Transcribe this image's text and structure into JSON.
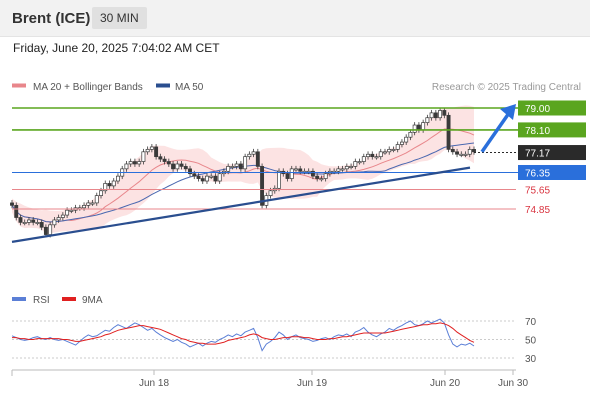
{
  "header": {
    "symbol": "Brent (ICE)",
    "timeframe": "30 MIN"
  },
  "timestamp": "Friday, June 20, 2025 7:04:02 AM CET",
  "legend": {
    "ma20": "MA 20 + Bollinger Bands",
    "ma50": "MA 50",
    "source": "Research © 2025 Trading Central"
  },
  "colors": {
    "resistance": "#5aa51f",
    "support": "#e8868b",
    "pivot": "#2a6fdb",
    "last": "#2a2a2a",
    "trend": "#2a4e8f",
    "candle": "#3a3a3a",
    "bollinger": "#fbdcdc",
    "ma20": "#e8868b",
    "ma50": "#4a68b0",
    "rsi": "#5b7fd6",
    "rsi_ma": "#e02020"
  },
  "chart_data": [
    {
      "type": "candlestick",
      "title": "",
      "xlabel": "",
      "ylabel": "",
      "x_ticks": [
        "Jun 18",
        "Jun 19",
        "Jun 20",
        "Jun 30"
      ],
      "ylim": [
        73.4,
        79.4
      ],
      "levels": [
        {
          "value": 79.0,
          "label": "79.00",
          "kind": "resistance"
        },
        {
          "value": 78.1,
          "label": "78.10",
          "kind": "resistance"
        },
        {
          "value": 77.17,
          "label": "77.17",
          "kind": "last"
        },
        {
          "value": 76.35,
          "label": "76.35",
          "kind": "pivot"
        },
        {
          "value": 75.65,
          "label": "75.65",
          "kind": "support"
        },
        {
          "value": 74.85,
          "label": "74.85",
          "kind": "support"
        }
      ],
      "trendline": {
        "from": 73.5,
        "to": 76.55
      },
      "forecast_arrow": {
        "from": 77.2,
        "to": 79.0
      },
      "closes": [
        75.0,
        74.5,
        74.3,
        74.3,
        74.4,
        74.3,
        74.3,
        74.1,
        73.8,
        74.2,
        74.4,
        74.5,
        74.6,
        74.8,
        74.8,
        74.9,
        74.9,
        75.0,
        75.1,
        75.1,
        75.4,
        75.6,
        75.9,
        75.8,
        76.0,
        76.2,
        76.5,
        76.7,
        76.8,
        76.7,
        76.8,
        77.2,
        77.3,
        77.4,
        77.0,
        76.9,
        76.8,
        76.7,
        76.5,
        76.7,
        76.6,
        76.5,
        76.3,
        76.2,
        76.1,
        76.0,
        76.2,
        76.2,
        76.0,
        76.3,
        76.4,
        76.6,
        76.6,
        76.7,
        76.5,
        77.0,
        77.1,
        77.2,
        76.6,
        75.0,
        75.4,
        75.6,
        75.7,
        76.4,
        76.3,
        76.1,
        76.5,
        76.5,
        76.4,
        76.4,
        76.4,
        76.2,
        76.1,
        76.1,
        76.3,
        76.4,
        76.4,
        76.5,
        76.5,
        76.6,
        76.6,
        76.8,
        76.8,
        77.0,
        77.1,
        77.0,
        77.0,
        77.2,
        77.2,
        77.3,
        77.3,
        77.5,
        77.6,
        77.8,
        78.0,
        78.3,
        78.1,
        78.4,
        78.6,
        78.8,
        78.6,
        78.9,
        78.7,
        77.3,
        77.2,
        77.1,
        77.1,
        77.1,
        77.3,
        77.2
      ]
    },
    {
      "type": "line",
      "title": "",
      "series": [
        {
          "name": "RSI"
        },
        {
          "name": "9MA"
        }
      ],
      "y_ticks": [
        70,
        50,
        30
      ],
      "ylim": [
        25,
        80
      ],
      "rsi": [
        54,
        52,
        50,
        49,
        50,
        52,
        53,
        51,
        50,
        52,
        50,
        49,
        50,
        48,
        46,
        44,
        48,
        52,
        55,
        53,
        54,
        57,
        60,
        59,
        63,
        66,
        64,
        62,
        65,
        68,
        66,
        63,
        60,
        62,
        58,
        55,
        52,
        50,
        48,
        50,
        47,
        45,
        42,
        44,
        46,
        43,
        46,
        48,
        47,
        50,
        52,
        55,
        53,
        56,
        54,
        58,
        60,
        62,
        52,
        38,
        45,
        48,
        52,
        58,
        55,
        50,
        53,
        55,
        52,
        51,
        50,
        48,
        49,
        51,
        52,
        50,
        53,
        55,
        54,
        56,
        53,
        58,
        60,
        63,
        58,
        55,
        53,
        56,
        58,
        62,
        60,
        63,
        65,
        68,
        70,
        66,
        65,
        67,
        70,
        68,
        70,
        72,
        68,
        55,
        45,
        42,
        45,
        44,
        46,
        43
      ],
      "ma9": [
        52,
        52,
        51,
        51,
        50,
        50,
        51,
        51,
        51,
        51,
        51,
        51,
        50,
        50,
        49,
        48,
        48,
        49,
        50,
        51,
        52,
        53,
        55,
        56,
        58,
        60,
        61,
        62,
        63,
        64,
        65,
        65,
        64,
        63,
        62,
        61,
        59,
        57,
        55,
        53,
        51,
        50,
        48,
        47,
        46,
        46,
        45,
        45,
        45,
        46,
        47,
        49,
        50,
        51,
        52,
        53,
        55,
        56,
        55,
        52,
        51,
        50,
        50,
        51,
        52,
        52,
        53,
        53,
        53,
        52,
        52,
        51,
        50,
        50,
        50,
        51,
        51,
        52,
        53,
        53,
        54,
        55,
        56,
        57,
        57,
        57,
        57,
        57,
        57,
        58,
        59,
        60,
        61,
        62,
        63,
        64,
        65,
        66,
        66,
        67,
        67,
        68,
        67,
        65,
        62,
        58,
        55,
        52,
        49,
        47
      ]
    }
  ]
}
